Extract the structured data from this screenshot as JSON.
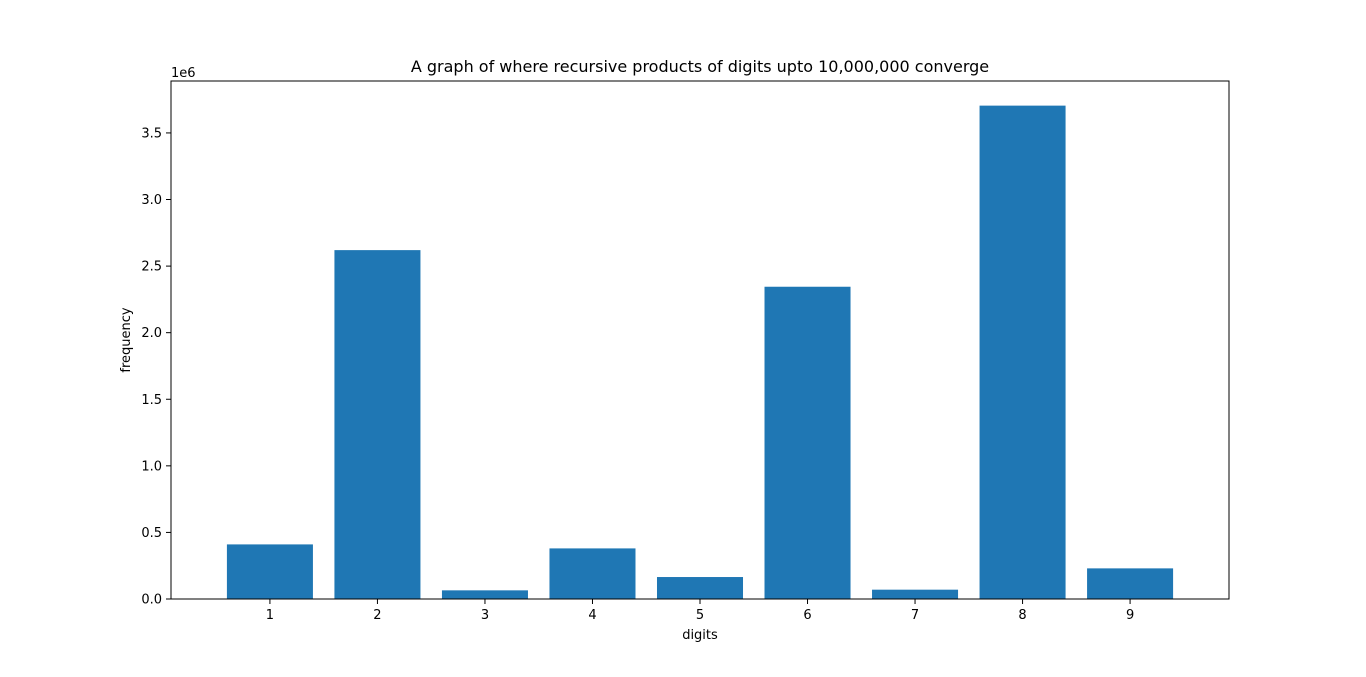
{
  "chart_data": {
    "type": "bar",
    "title": "A graph of where recursive products of digits upto 10,000,000 converge",
    "xlabel": "digits",
    "ylabel": "frequency",
    "y_offset_label": "1e6",
    "categories": [
      "1",
      "2",
      "3",
      "4",
      "5",
      "6",
      "7",
      "8",
      "9"
    ],
    "values": [
      410000,
      2620000,
      65000,
      380000,
      165000,
      2345000,
      70000,
      3705000,
      230000
    ],
    "ylim": [
      0,
      3890000
    ],
    "y_ticks": [
      0,
      500000,
      1000000,
      1500000,
      2000000,
      2500000,
      3000000,
      3500000
    ],
    "y_tick_labels": [
      "0.0",
      "0.5",
      "1.0",
      "1.5",
      "2.0",
      "2.5",
      "3.0",
      "3.5"
    ],
    "bar_color": "#1f77b4",
    "grid": false,
    "legend": "none"
  }
}
